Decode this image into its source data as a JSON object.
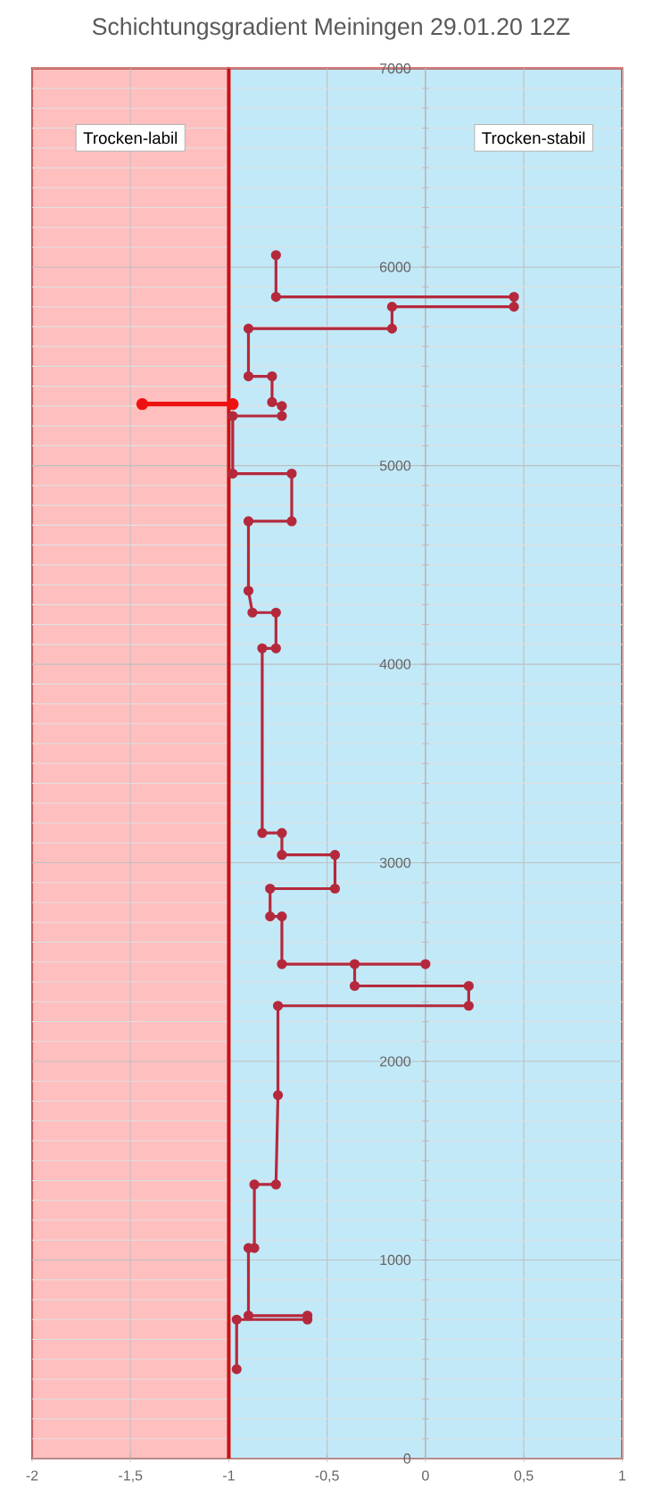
{
  "chart_data": {
    "type": "line",
    "title": "Schichtungsgradient  Meiningen 29.01.20 12Z",
    "xlim": [
      -2,
      1
    ],
    "ylim": [
      0,
      7000
    ],
    "xticks": [
      -2,
      {
        "value": -1.5,
        "label": "-1,5"
      },
      -1,
      {
        "value": -0.5,
        "label": "-0,5"
      },
      0,
      {
        "value": 0.5,
        "label": "0,5"
      },
      1
    ],
    "yticks": [
      0,
      1000,
      2000,
      3000,
      4000,
      5000,
      6000,
      7000
    ],
    "grid": true,
    "marker": "circle",
    "line_style": "solid",
    "bands": [
      {
        "axis": "x",
        "from": -2,
        "to": -1,
        "label": "Trocken-labil",
        "color": "#ffbfbf"
      },
      {
        "axis": "x",
        "from": -1,
        "to": 1,
        "label": "Trocken-stabil",
        "color": "#c2e9f8"
      }
    ],
    "ref_lines": [
      {
        "axis": "x",
        "value": -1,
        "color": "#cc1111"
      }
    ],
    "series": [
      {
        "color": "#b5293c",
        "x": [
          -0.76,
          -0.76,
          0.45,
          0.45,
          -0.17,
          -0.17,
          -0.9,
          -0.9,
          -0.78,
          -0.78,
          -0.73,
          -0.73,
          -0.98,
          -0.98,
          -0.68,
          -0.68,
          -0.9,
          -0.9,
          -0.88,
          -0.76,
          -0.76,
          -0.83,
          -0.83,
          -0.73,
          -0.73,
          -0.46,
          -0.46,
          -0.79,
          -0.79,
          -0.73,
          -0.73,
          0.0,
          -0.36,
          -0.36,
          0.22,
          0.22,
          -0.75,
          -0.75,
          -0.76,
          -0.87,
          -0.87,
          -0.9,
          -0.9,
          -0.6,
          -0.6,
          -0.96,
          -0.96
        ],
        "values": [
          6060,
          5850,
          5850,
          5800,
          5800,
          5690,
          5690,
          5450,
          5450,
          5320,
          5300,
          5250,
          5250,
          4960,
          4960,
          4720,
          4720,
          4370,
          4260,
          4260,
          4080,
          4080,
          3150,
          3150,
          3040,
          3040,
          2870,
          2870,
          2730,
          2730,
          2490,
          2490,
          2490,
          2380,
          2380,
          2280,
          2280,
          1830,
          1380,
          1380,
          1060,
          1060,
          720,
          720,
          700,
          700,
          450
        ]
      },
      {
        "color": "#ee1111",
        "x": [
          -1.44,
          -0.98
        ],
        "values": [
          5310,
          5310
        ]
      }
    ]
  }
}
